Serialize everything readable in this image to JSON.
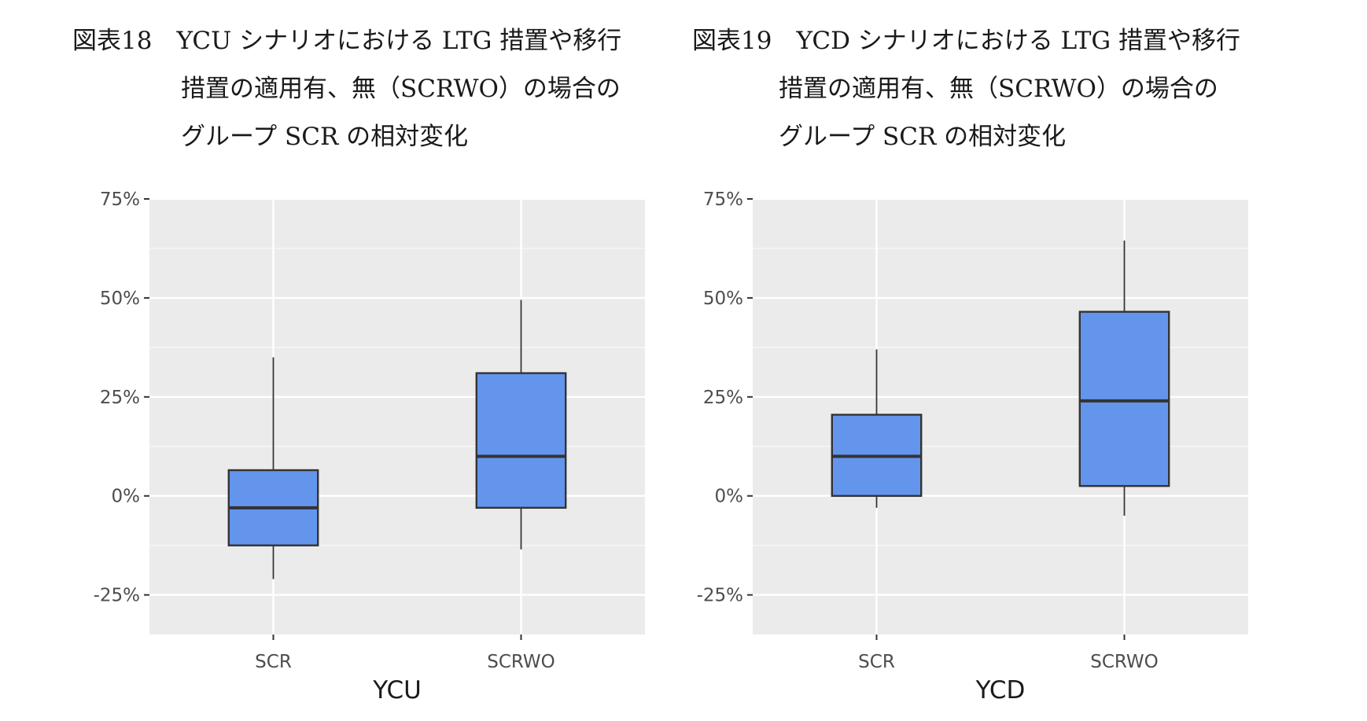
{
  "figures": [
    {
      "caption_lines": [
        "図表18　YCU シナリオにおける LTG 措置や移行",
        "措置の適用有、無（SCRWO）の場合の",
        "グループ SCR の相対変化"
      ]
    },
    {
      "caption_lines": [
        "図表19　YCD シナリオにおける LTG 措置や移行",
        "措置の適用有、無（SCRWO）の場合の",
        "グループ SCR の相対変化"
      ]
    }
  ],
  "colors": {
    "panel_bg": "#ebebeb",
    "grid_major": "#ffffff",
    "box_fill": "#6495ed",
    "box_stroke": "#333333"
  },
  "chart_data": [
    {
      "type": "boxplot",
      "xlabel": "YCU",
      "ylabel": "",
      "ylim": [
        -0.35,
        0.75
      ],
      "y_ticks": [
        -0.25,
        0,
        0.25,
        0.5,
        0.75
      ],
      "y_tick_labels": [
        "-25%",
        "0%",
        "25%",
        "50%",
        "75%"
      ],
      "categories": [
        "SCR",
        "SCRWO"
      ],
      "boxes": [
        {
          "category": "SCR",
          "min": -0.21,
          "q1": -0.125,
          "median": -0.03,
          "q3": 0.065,
          "max": 0.35
        },
        {
          "category": "SCRWO",
          "min": -0.135,
          "q1": -0.03,
          "median": 0.1,
          "q3": 0.31,
          "max": 0.495
        }
      ],
      "grid": true,
      "legend": "none"
    },
    {
      "type": "boxplot",
      "xlabel": "YCD",
      "ylabel": "",
      "ylim": [
        -0.35,
        0.75
      ],
      "y_ticks": [
        -0.25,
        0,
        0.25,
        0.5,
        0.75
      ],
      "y_tick_labels": [
        "-25%",
        "0%",
        "25%",
        "50%",
        "75%"
      ],
      "categories": [
        "SCR",
        "SCRWO"
      ],
      "boxes": [
        {
          "category": "SCR",
          "min": -0.03,
          "q1": 0.0,
          "median": 0.1,
          "q3": 0.205,
          "max": 0.37
        },
        {
          "category": "SCRWO",
          "min": -0.05,
          "q1": 0.025,
          "median": 0.24,
          "q3": 0.465,
          "max": 0.645
        }
      ],
      "grid": true,
      "legend": "none"
    }
  ]
}
